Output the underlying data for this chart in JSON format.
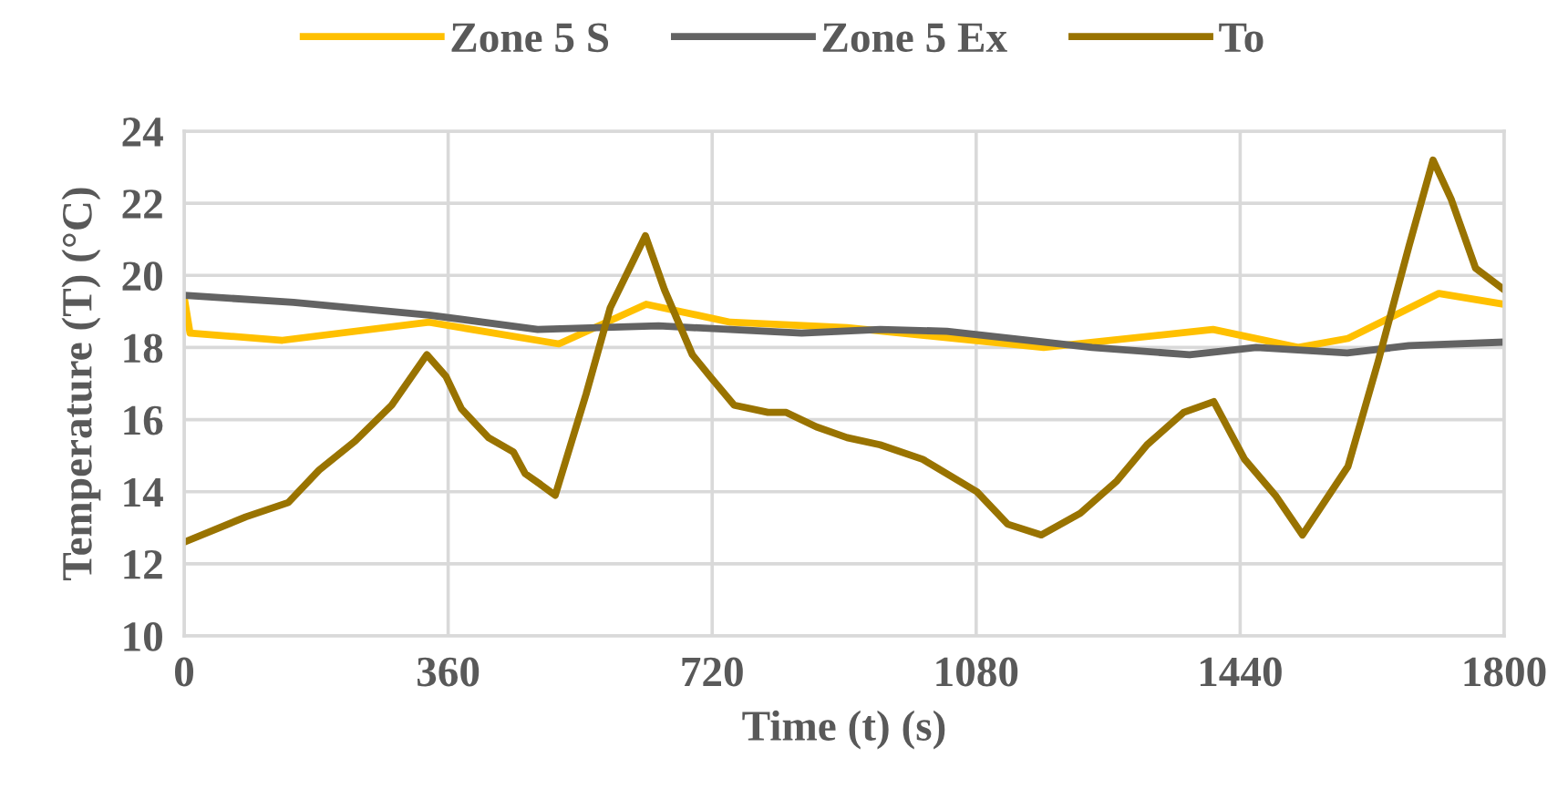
{
  "chart_data": {
    "type": "line",
    "xlabel": "Time (t) (s)",
    "ylabel": "Temperature (T) (°C)",
    "xlim": [
      0,
      1800
    ],
    "xticks": [
      0,
      360,
      720,
      1080,
      1440,
      1800
    ],
    "ylim": [
      10,
      24
    ],
    "yticks": [
      10,
      12,
      14,
      16,
      18,
      20,
      22,
      24
    ],
    "grid": true,
    "legend": "top",
    "marker": "none",
    "line_style": "solid",
    "series": [
      {
        "name": "Zone 5 S",
        "color": "#ffc000",
        "x": [
          0,
          8,
          134,
          334,
          511,
          630,
          745,
          904,
          1172,
          1403,
          1519,
          1587,
          1711,
          1800
        ],
        "values": [
          19.4,
          18.4,
          18.2,
          18.7,
          18.1,
          19.2,
          18.7,
          18.55,
          18.0,
          18.5,
          18.0,
          18.25,
          19.5,
          19.2
        ]
      },
      {
        "name": "Zone 5 Ex",
        "color": "#636363",
        "x": [
          0,
          149,
          334,
          482,
          647,
          842,
          949,
          1040,
          1238,
          1371,
          1462,
          1586,
          1670,
          1800
        ],
        "values": [
          19.45,
          19.25,
          18.9,
          18.5,
          18.6,
          18.4,
          18.5,
          18.45,
          18.0,
          17.8,
          18.0,
          17.85,
          18.05,
          18.15
        ]
      },
      {
        "name": "To",
        "color": "#997300",
        "x": [
          0,
          84,
          142,
          184,
          233,
          283,
          331,
          357,
          378,
          415,
          449,
          465,
          486,
          506,
          548,
          581,
          629,
          655,
          693,
          717,
          750,
          796,
          821,
          862,
          904,
          949,
          1007,
          1081,
          1123,
          1169,
          1222,
          1272,
          1313,
          1363,
          1404,
          1446,
          1488,
          1525,
          1587,
          1628,
          1670,
          1703,
          1728,
          1761,
          1800
        ],
        "values": [
          12.6,
          13.3,
          13.7,
          14.6,
          15.4,
          16.4,
          17.8,
          17.2,
          16.3,
          15.5,
          15.1,
          14.5,
          14.2,
          13.9,
          16.7,
          19.1,
          21.1,
          19.6,
          17.8,
          17.2,
          16.4,
          16.2,
          16.2,
          15.8,
          15.5,
          15.3,
          14.9,
          14.0,
          13.1,
          12.8,
          13.4,
          14.3,
          15.3,
          16.2,
          16.5,
          14.9,
          13.9,
          12.8,
          14.7,
          17.6,
          20.8,
          23.2,
          22.1,
          20.2,
          19.6
        ]
      }
    ]
  }
}
